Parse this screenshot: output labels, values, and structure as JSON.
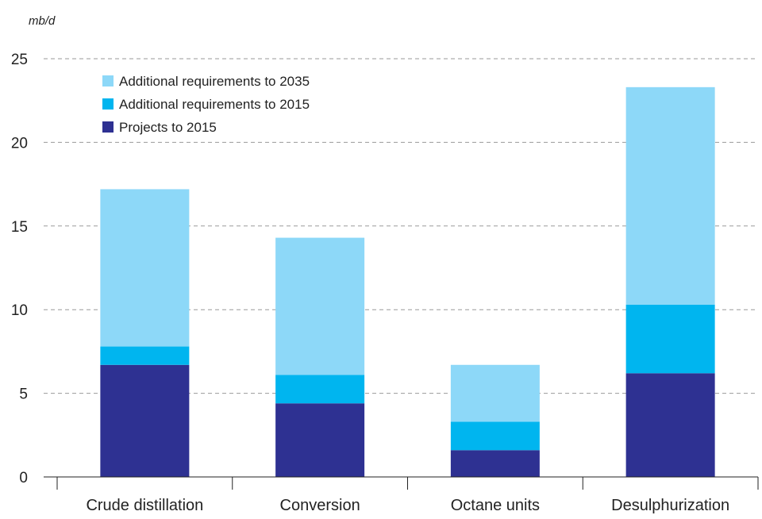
{
  "chart_data": {
    "type": "bar",
    "stacked": true,
    "ylabel": "mb/d",
    "ylim": [
      0,
      25
    ],
    "yticks": [
      0,
      5,
      10,
      15,
      20,
      25
    ],
    "grid": "horizontal dashed",
    "legend_position": "top-left",
    "categories": [
      "Crude distillation",
      "Conversion",
      "Octane units",
      "Desulphurization"
    ],
    "series": [
      {
        "name": "Projects to 2015",
        "color": "#2e3192",
        "values": [
          6.7,
          4.4,
          1.6,
          6.2
        ]
      },
      {
        "name": "Additional requirements to 2015",
        "color": "#00b5ef",
        "values": [
          1.1,
          1.7,
          1.7,
          4.1
        ]
      },
      {
        "name": "Additional requirements to 2035",
        "color": "#8dd8f8",
        "values": [
          9.4,
          8.2,
          3.4,
          13.0
        ]
      }
    ],
    "legend_order": [
      2,
      1,
      0
    ]
  }
}
